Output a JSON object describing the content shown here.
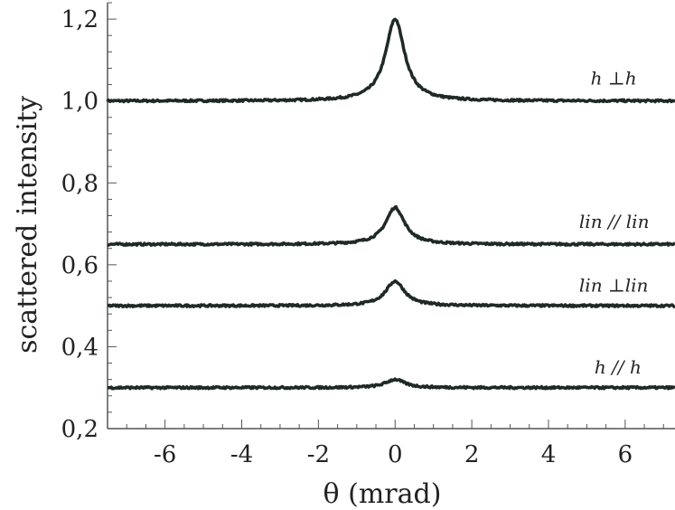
{
  "chart_data": {
    "type": "line",
    "title": "",
    "xlabel": "θ (mrad)",
    "ylabel": "scattered intensity",
    "xlim": [
      -7.5,
      7.3
    ],
    "ylim": [
      0.2,
      1.24
    ],
    "x_ticks": [
      -6,
      -4,
      -2,
      0,
      2,
      4,
      6
    ],
    "x_tick_labels": [
      "-6",
      "-4",
      "-2",
      "0",
      "2",
      "4",
      "6"
    ],
    "y_ticks": [
      0.2,
      0.4,
      0.6,
      0.8,
      1.0,
      1.2
    ],
    "y_tick_labels": [
      "0,2",
      "0,4",
      "0,6",
      "0,8",
      "1,0",
      "1,2"
    ],
    "grid": false,
    "line_color": "#1f2a25",
    "series": [
      {
        "name": "h ⊥h",
        "baseline": 1.0,
        "peak": 1.2,
        "peak_x": 0.0,
        "width": 0.3,
        "label_at": [
          5.1,
          1.04
        ]
      },
      {
        "name": "lin // lin",
        "baseline": 0.65,
        "peak": 0.74,
        "peak_x": 0.0,
        "width": 0.3,
        "label_at": [
          4.8,
          0.69
        ]
      },
      {
        "name": "lin ⊥lin",
        "baseline": 0.5,
        "peak": 0.56,
        "peak_x": 0.0,
        "width": 0.3,
        "label_at": [
          4.8,
          0.535
        ]
      },
      {
        "name": "h // h",
        "baseline": 0.3,
        "peak": 0.32,
        "peak_x": 0.0,
        "width": 0.3,
        "label_at": [
          5.2,
          0.335
        ]
      }
    ]
  }
}
